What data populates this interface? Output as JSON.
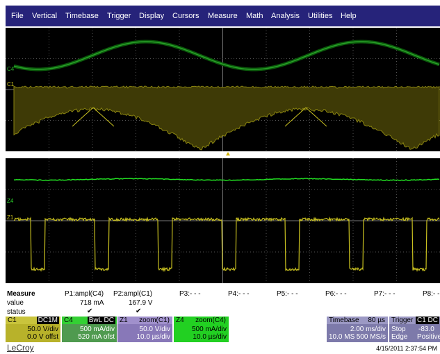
{
  "menu": [
    "File",
    "Vertical",
    "Timebase",
    "Trigger",
    "Display",
    "Cursors",
    "Measure",
    "Math",
    "Analysis",
    "Utilities",
    "Help"
  ],
  "traces": {
    "c4": "C4",
    "c1": "C1",
    "z4": "Z4",
    "z1": "Z1"
  },
  "measure": {
    "title": "Measure",
    "row_labels": [
      "value",
      "status"
    ],
    "params": [
      {
        "name": "P1:ampl(C4)",
        "value": "718 mA",
        "status": "✔"
      },
      {
        "name": "P2:ampl(C1)",
        "value": "167.9 V",
        "status": "✔"
      },
      {
        "name": "P3:- - -"
      },
      {
        "name": "P4:- - -"
      },
      {
        "name": "P5:- - -"
      },
      {
        "name": "P6:- - -"
      },
      {
        "name": "P7:- - -"
      },
      {
        "name": "P8:- - -"
      }
    ]
  },
  "channels": [
    {
      "name": "C1",
      "coupling": "DC1M",
      "scale": "50.0 V/div",
      "offset": "0.0 V offst"
    },
    {
      "name": "C4",
      "coupling": "BwL DC",
      "scale": "500 mA/div",
      "offset": "520 mA ofst"
    },
    {
      "name": "Z1",
      "coupling": "zoom(C1)",
      "scale": "50.0 V/div",
      "offset": "10.0 µs/div"
    },
    {
      "name": "Z4",
      "coupling": "zoom(C4)",
      "scale": "500 mA/div",
      "offset": "10.0 µs/div"
    }
  ],
  "timebase": {
    "title": "Timebase",
    "delay": "80 µs",
    "scale": "2.00 ms/div",
    "samples": "10.0 MS",
    "rate": "500 MS/s"
  },
  "trigger": {
    "title": "Trigger",
    "source": "C1 DC",
    "mode": "Stop",
    "level": "-83.0",
    "type": "Edge",
    "slope": "Positive"
  },
  "brand": "LeCroy",
  "timestamp": "4/15/2011 2:37:54 PM"
}
